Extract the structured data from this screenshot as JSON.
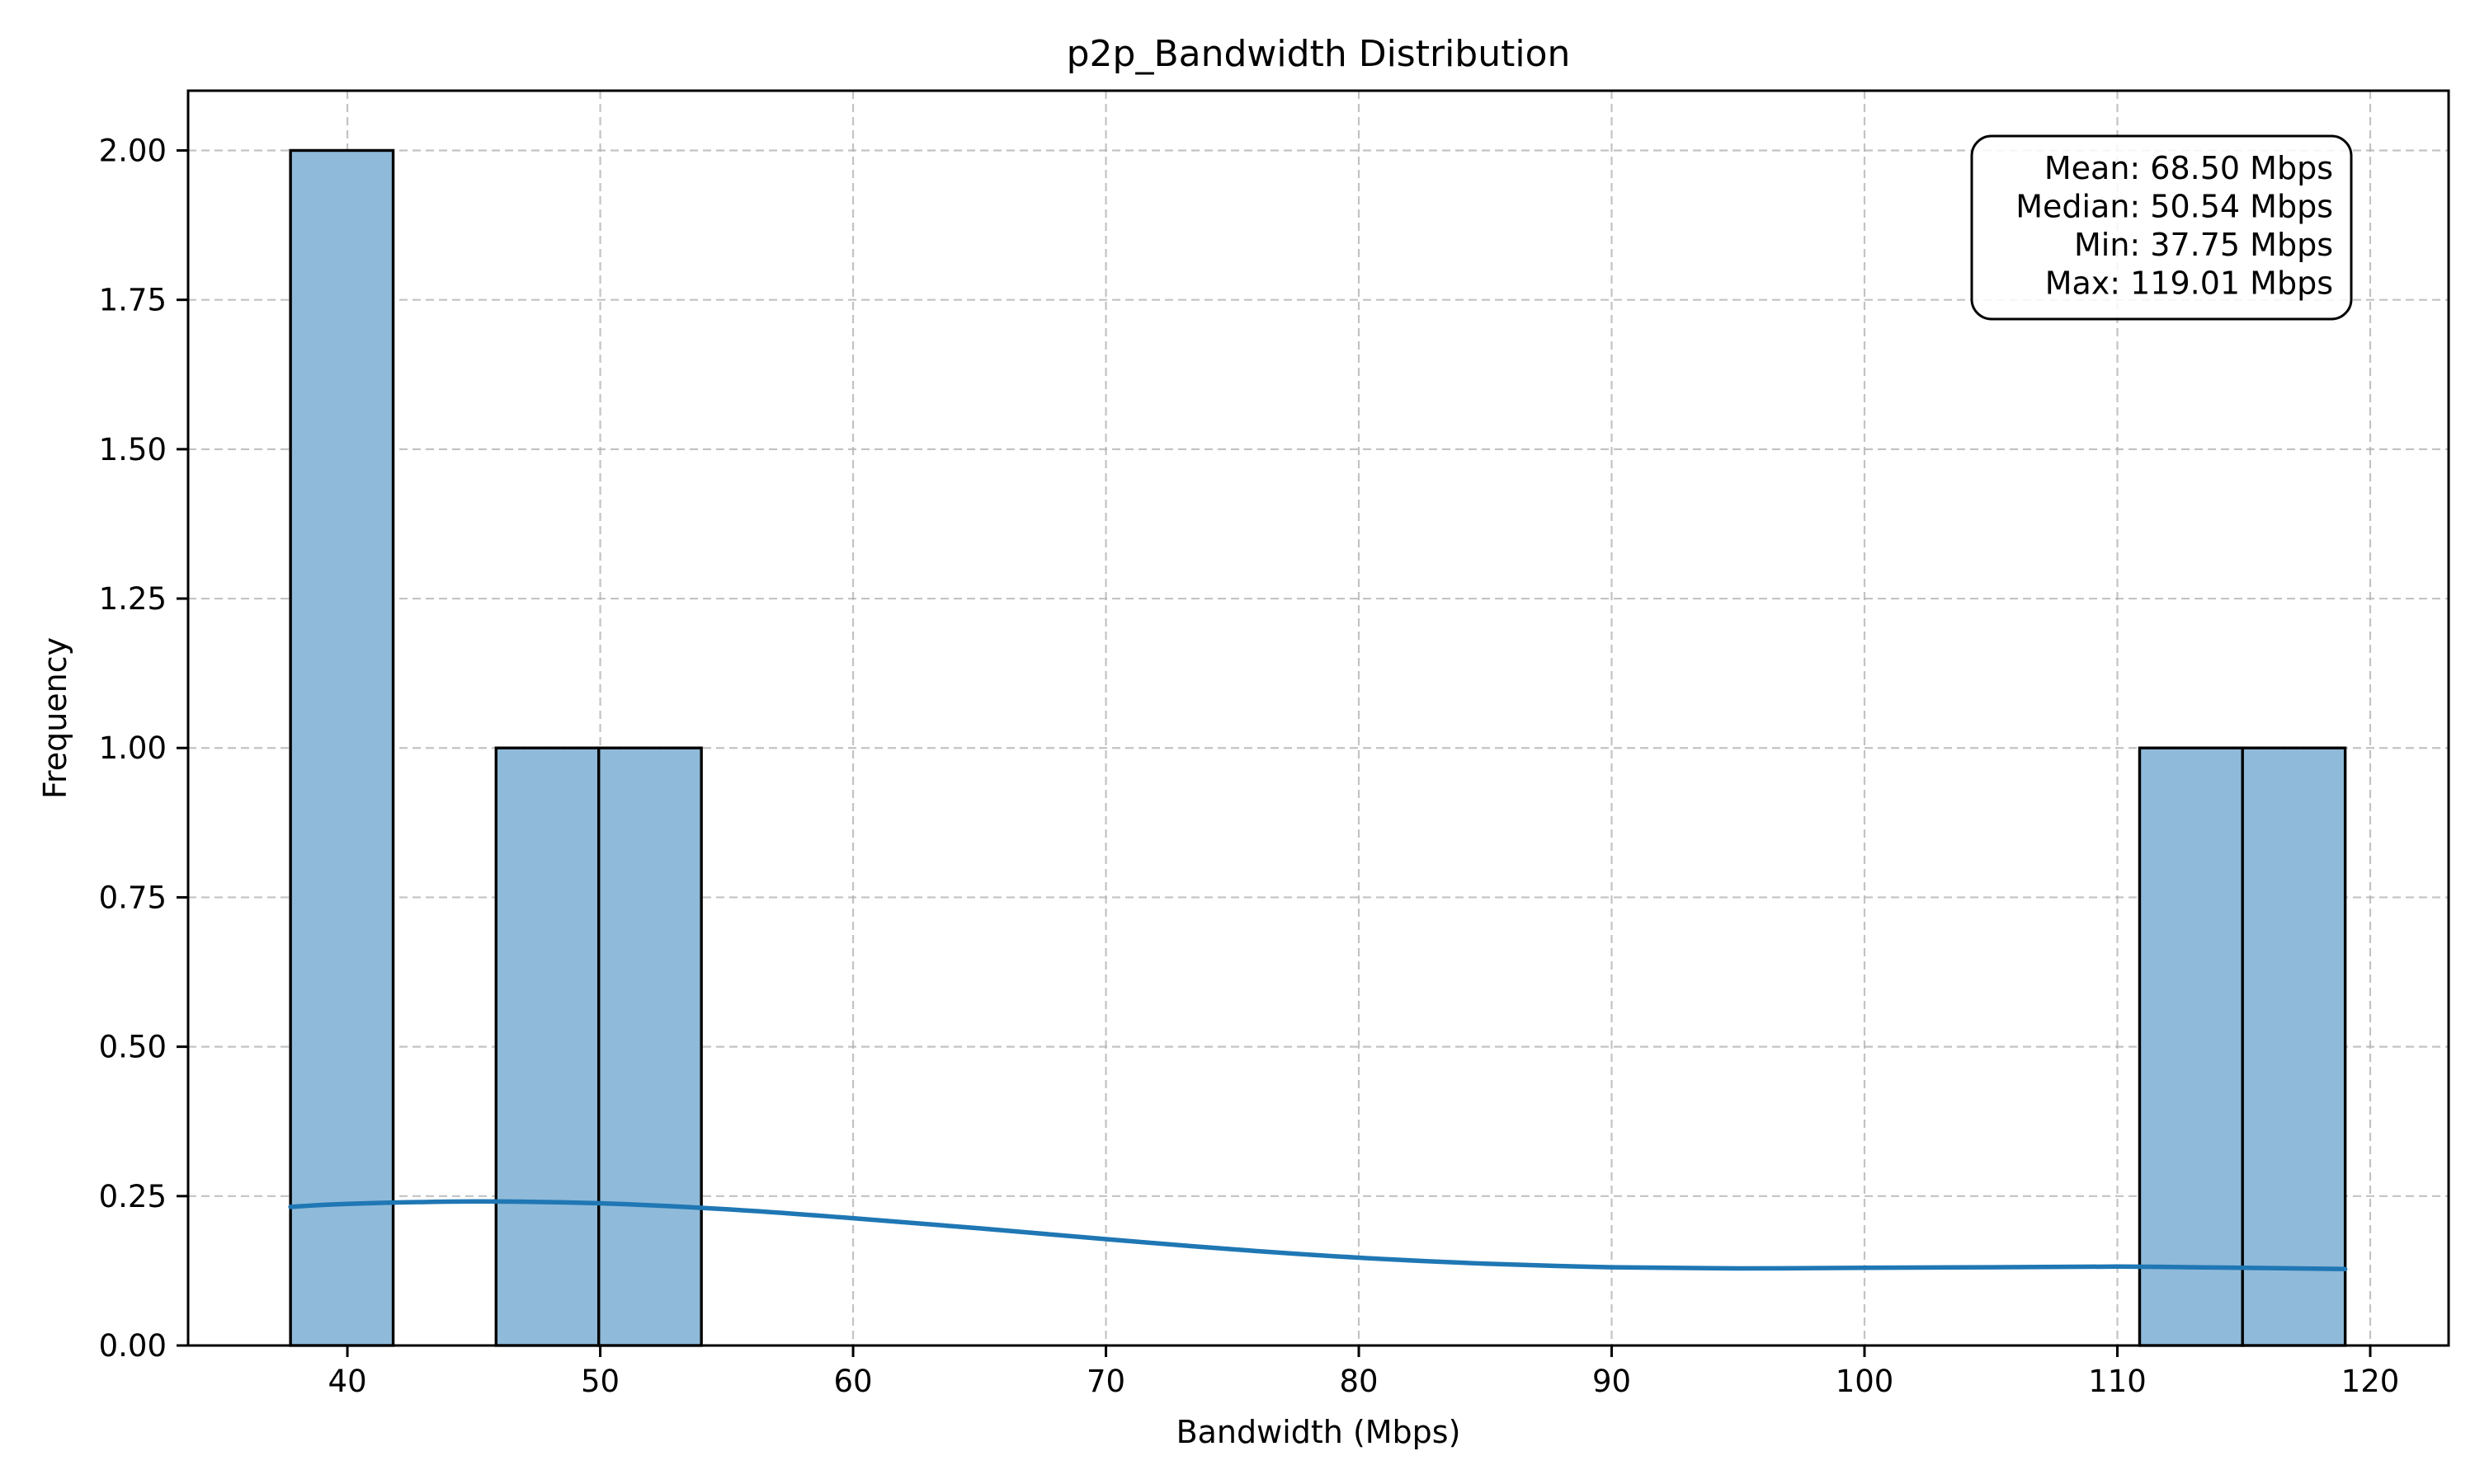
{
  "chart_data": {
    "type": "bar",
    "title": "p2p_Bandwidth Distribution",
    "xlabel": "Bandwidth (Mbps)",
    "ylabel": "Frequency",
    "xlim": [
      33.7,
      123.1
    ],
    "ylim": [
      0,
      2.1
    ],
    "xticks": [
      40,
      50,
      60,
      70,
      80,
      90,
      100,
      110,
      120
    ],
    "yticks": [
      "0.00",
      "0.25",
      "0.50",
      "0.75",
      "1.00",
      "1.25",
      "1.50",
      "1.75",
      "2.00"
    ],
    "grid": true,
    "bins": [
      {
        "x0": 37.75,
        "x1": 41.81,
        "count": 2
      },
      {
        "x0": 45.88,
        "x1": 49.94,
        "count": 1
      },
      {
        "x0": 49.94,
        "x1": 54.0,
        "count": 1
      },
      {
        "x0": 110.88,
        "x1": 114.95,
        "count": 1
      },
      {
        "x0": 114.95,
        "x1": 119.01,
        "count": 1
      }
    ],
    "kde": {
      "x": [
        37.75,
        40,
        45,
        50,
        55,
        60,
        65,
        70,
        75,
        80,
        85,
        90,
        95,
        100,
        105,
        110,
        115,
        119.01
      ],
      "y": [
        0.232,
        0.237,
        0.241,
        0.238,
        0.228,
        0.213,
        0.196,
        0.178,
        0.161,
        0.147,
        0.137,
        0.131,
        0.129,
        0.13,
        0.131,
        0.132,
        0.13,
        0.128
      ]
    },
    "stats_box": {
      "position": "top-right",
      "lines": [
        "Mean: 68.50 Mbps",
        "Median: 50.54 Mbps",
        "Min: 37.75 Mbps",
        "Max: 119.01 Mbps"
      ]
    },
    "colors": {
      "bar_fill": "#8fbad9",
      "kde_line": "#1f77b4"
    }
  }
}
